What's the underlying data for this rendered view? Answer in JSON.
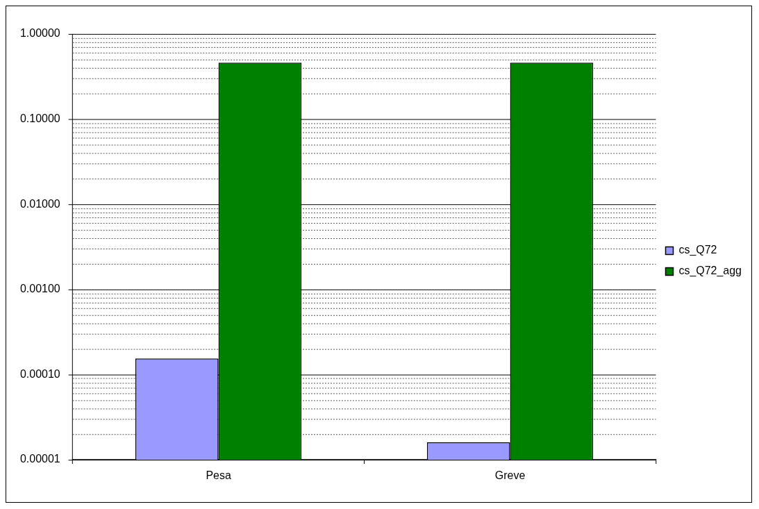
{
  "chart_data": {
    "type": "bar",
    "categories": [
      "Pesa",
      "Greve"
    ],
    "series": [
      {
        "name": "cs_Q72",
        "color": "#9999ff",
        "values": [
          0.000154,
          1.6e-05
        ]
      },
      {
        "name": "cs_Q72_agg",
        "color": "#008000",
        "values": [
          0.46,
          0.46
        ]
      }
    ],
    "log": true,
    "ylim": [
      1e-05,
      1
    ],
    "yticks": [
      {
        "value": 1e-05,
        "label": "0.00001"
      },
      {
        "value": 2e-05,
        "label": null
      },
      {
        "value": 3e-05,
        "label": null
      },
      {
        "value": 4e-05,
        "label": null
      },
      {
        "value": 5e-05,
        "label": null
      },
      {
        "value": 6e-05,
        "label": null
      },
      {
        "value": 7e-05,
        "label": null
      },
      {
        "value": 8e-05,
        "label": null
      },
      {
        "value": 9e-05,
        "label": null
      },
      {
        "value": 0.0001,
        "label": "0.00010"
      },
      {
        "value": 0.0002,
        "label": null
      },
      {
        "value": 0.0003,
        "label": null
      },
      {
        "value": 0.0004,
        "label": null
      },
      {
        "value": 0.0005,
        "label": null
      },
      {
        "value": 0.0006,
        "label": null
      },
      {
        "value": 0.0007,
        "label": null
      },
      {
        "value": 0.0008,
        "label": null
      },
      {
        "value": 0.0009,
        "label": null
      },
      {
        "value": 0.001,
        "label": "0.00100"
      },
      {
        "value": 0.002,
        "label": null
      },
      {
        "value": 0.003,
        "label": null
      },
      {
        "value": 0.004,
        "label": null
      },
      {
        "value": 0.005,
        "label": null
      },
      {
        "value": 0.006,
        "label": null
      },
      {
        "value": 0.007,
        "label": null
      },
      {
        "value": 0.008,
        "label": null
      },
      {
        "value": 0.009,
        "label": null
      },
      {
        "value": 0.01,
        "label": "0.01000"
      },
      {
        "value": 0.02,
        "label": null
      },
      {
        "value": 0.03,
        "label": null
      },
      {
        "value": 0.04,
        "label": null
      },
      {
        "value": 0.05,
        "label": null
      },
      {
        "value": 0.06,
        "label": null
      },
      {
        "value": 0.07,
        "label": null
      },
      {
        "value": 0.08,
        "label": null
      },
      {
        "value": 0.09,
        "label": null
      },
      {
        "value": 0.1,
        "label": "0.10000"
      },
      {
        "value": 0.2,
        "label": null
      },
      {
        "value": 0.3,
        "label": null
      },
      {
        "value": 0.4,
        "label": null
      },
      {
        "value": 0.5,
        "label": null
      },
      {
        "value": 0.6,
        "label": null
      },
      {
        "value": 0.7,
        "label": null
      },
      {
        "value": 0.8,
        "label": null
      },
      {
        "value": 0.9,
        "label": null
      },
      {
        "value": 1,
        "label": "1.00000"
      }
    ],
    "grid": "y",
    "legend": "right"
  }
}
